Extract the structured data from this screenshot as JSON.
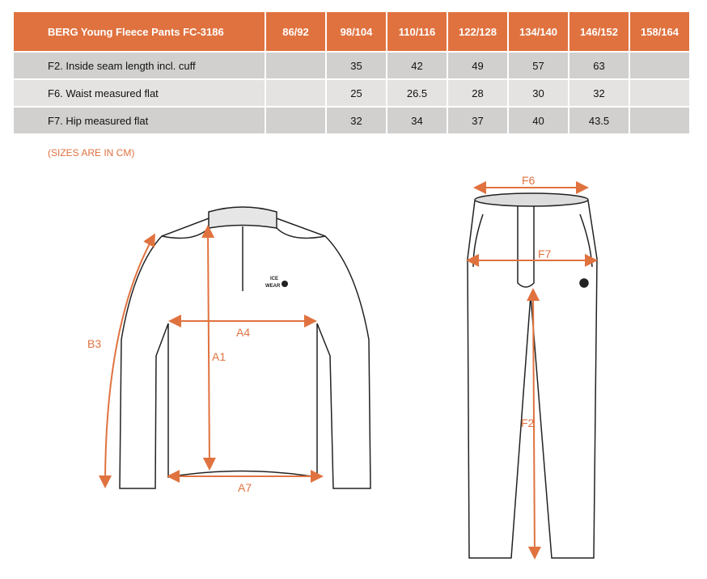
{
  "table": {
    "title": "BERG Young Fleece Pants FC-3186",
    "sizes": [
      "86/92",
      "98/104",
      "110/116",
      "122/128",
      "134/140",
      "146/152",
      "158/164"
    ],
    "rows": [
      {
        "label": "F2. Inside seam length incl. cuff",
        "values": [
          "",
          "35",
          "42",
          "49",
          "57",
          "63",
          ""
        ]
      },
      {
        "label": "F6. Waist measured flat",
        "values": [
          "",
          "25",
          "26.5",
          "28",
          "30",
          "32",
          ""
        ]
      },
      {
        "label": "F7. Hip measured flat",
        "values": [
          "",
          "32",
          "34",
          "37",
          "40",
          "43.5",
          ""
        ]
      }
    ]
  },
  "note": "(SIZES ARE IN CM)",
  "diagram": {
    "accent": "#E0723F",
    "jacket_labels": {
      "b3": "B3",
      "a1": "A1",
      "a4": "A4",
      "a7": "A7"
    },
    "pants_labels": {
      "f6": "F6",
      "f7": "F7",
      "f2": "F2"
    },
    "logo": "ICE WEAR"
  }
}
